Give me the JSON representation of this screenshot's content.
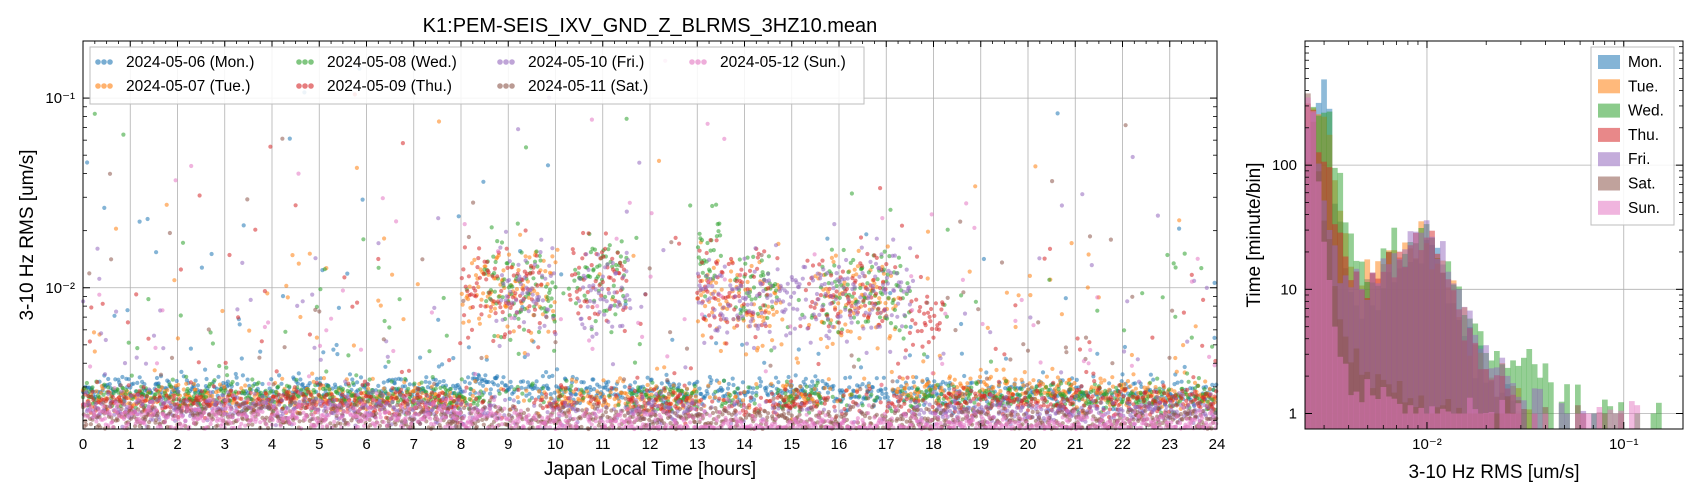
{
  "chart_data": [
    {
      "type": "scatter",
      "title": "K1:PEM-SEIS_IXV_GND_Z_BLRMS_3HZ10.mean",
      "xlabel": "Japan Local Time [hours]",
      "ylabel": "3-10 Hz RMS [um/s]",
      "xlim": [
        0,
        24
      ],
      "ylim": [
        0.0018,
        0.2
      ],
      "yscale": "log",
      "grid": true,
      "legend_position": "upper-left",
      "x_ticks": [
        0,
        1,
        2,
        3,
        4,
        5,
        6,
        7,
        8,
        9,
        10,
        11,
        12,
        13,
        14,
        15,
        16,
        17,
        18,
        19,
        20,
        21,
        22,
        23,
        24
      ],
      "y_ticks": [
        {
          "value": 0.01,
          "label": "10⁻²"
        },
        {
          "value": 0.1,
          "label": "10⁻¹"
        }
      ],
      "series": [
        {
          "name": "2024-05-06 (Mon.)",
          "color": "#1f77b4",
          "baseline": [
            [
              0,
              0.0029
            ],
            [
              7.9,
              0.0029
            ],
            [
              8.5,
              0.0033
            ],
            [
              9,
              0.0029
            ],
            [
              24,
              0.0027
            ]
          ],
          "active_windows": []
        },
        {
          "name": "2024-05-07 (Tue.)",
          "color": "#ff7f0e",
          "baseline": [
            [
              0,
              0.0026
            ],
            [
              12,
              0.0026
            ],
            [
              15,
              0.0027
            ],
            [
              18,
              0.0029
            ],
            [
              19.5,
              0.003
            ],
            [
              24,
              0.0026
            ]
          ],
          "active_windows": [
            [
              8,
              10,
              0.0095
            ],
            [
              13,
              14.8,
              0.0085
            ],
            [
              15.5,
              17.2,
              0.0085
            ]
          ]
        },
        {
          "name": "2024-05-08 (Wed.)",
          "color": "#2ca02c",
          "baseline": [
            [
              0,
              0.0027
            ],
            [
              24,
              0.0026
            ]
          ],
          "active_windows": [
            [
              8.5,
              10,
              0.01
            ],
            [
              10.4,
              11.5,
              0.011
            ],
            [
              13,
              13.5,
              0.016
            ],
            [
              13.8,
              14.7,
              0.01
            ],
            [
              15.6,
              17.5,
              0.0095
            ]
          ]
        },
        {
          "name": "2024-05-09 (Thu.)",
          "color": "#d62728",
          "baseline": [
            [
              0,
              0.0025
            ],
            [
              24,
              0.0025
            ]
          ],
          "active_windows": [
            [
              8,
              9.7,
              0.01
            ],
            [
              10.3,
              11.5,
              0.0105
            ],
            [
              13,
              14.5,
              0.0095
            ],
            [
              15.3,
              17,
              0.0095
            ],
            [
              17.5,
              18.2,
              0.007
            ]
          ]
        },
        {
          "name": "2024-05-10 (Fri.)",
          "color": "#9467bd",
          "baseline": [
            [
              0,
              0.0023
            ],
            [
              24,
              0.0022
            ]
          ],
          "active_windows": [
            [
              8.8,
              10,
              0.0095
            ],
            [
              10.5,
              11.6,
              0.009
            ],
            [
              13,
              15,
              0.0085
            ],
            [
              15,
              17.5,
              0.009
            ]
          ]
        },
        {
          "name": "2024-05-11 (Sat.)",
          "color": "#8c564b",
          "baseline": [
            [
              0,
              0.0021
            ],
            [
              24,
              0.002
            ]
          ],
          "active_windows": []
        },
        {
          "name": "2024-05-12 (Sun.)",
          "color": "#e377c2",
          "baseline": [
            [
              0,
              0.0021
            ],
            [
              8,
              0.0021
            ],
            [
              10,
              0.0019
            ],
            [
              12,
              0.0019
            ],
            [
              24,
              0.0019
            ]
          ],
          "active_windows": []
        }
      ]
    },
    {
      "type": "histogram",
      "xlabel": "3-10 Hz RMS [um/s]",
      "ylabel": "Time [minute/bin]",
      "xscale": "log",
      "yscale": "log",
      "xlim": [
        0.0024,
        0.2
      ],
      "ylim": [
        0.75,
        1000
      ],
      "grid": true,
      "legend_position": "upper-right",
      "x_ticks": [
        {
          "value": 0.01,
          "label": "10⁻²"
        },
        {
          "value": 0.1,
          "label": "10⁻¹"
        }
      ],
      "y_ticks": [
        {
          "value": 1,
          "label": "1"
        },
        {
          "value": 10,
          "label": "10"
        },
        {
          "value": 100,
          "label": "100"
        }
      ],
      "series": [
        {
          "name": "Mon.",
          "color": "#1f77b4",
          "bins": [
            [
              0.0026,
              90
            ],
            [
              0.0028,
              300
            ],
            [
              0.003,
              520
            ],
            [
              0.0032,
              250
            ],
            [
              0.0034,
              60
            ],
            [
              0.0037,
              25
            ],
            [
              0.004,
              10
            ],
            [
              0.0045,
              6
            ],
            [
              0.005,
              8
            ],
            [
              0.006,
              10
            ],
            [
              0.007,
              14
            ],
            [
              0.008,
              18
            ],
            [
              0.009,
              22
            ],
            [
              0.01,
              24
            ],
            [
              0.011,
              20
            ],
            [
              0.012,
              14
            ],
            [
              0.013,
              8
            ],
            [
              0.015,
              4
            ],
            [
              0.017,
              3
            ],
            [
              0.02,
              2
            ],
            [
              0.025,
              1.5
            ],
            [
              0.03,
              1
            ]
          ]
        },
        {
          "name": "Tue.",
          "color": "#ff7f0e",
          "bins": [
            [
              0.0025,
              120
            ],
            [
              0.0027,
              280
            ],
            [
              0.003,
              260
            ],
            [
              0.0033,
              130
            ],
            [
              0.0036,
              45
            ],
            [
              0.004,
              18
            ],
            [
              0.0045,
              12
            ],
            [
              0.005,
              14
            ],
            [
              0.006,
              16
            ],
            [
              0.007,
              18
            ],
            [
              0.008,
              22
            ],
            [
              0.009,
              28
            ],
            [
              0.01,
              25
            ],
            [
              0.011,
              18
            ],
            [
              0.013,
              9
            ],
            [
              0.015,
              5
            ],
            [
              0.018,
              3
            ],
            [
              0.022,
              2
            ],
            [
              0.028,
              1.5
            ],
            [
              0.035,
              1
            ]
          ]
        },
        {
          "name": "Wed.",
          "color": "#2ca02c",
          "bins": [
            [
              0.0025,
              100
            ],
            [
              0.0027,
              240
            ],
            [
              0.003,
              260
            ],
            [
              0.0033,
              150
            ],
            [
              0.0036,
              60
            ],
            [
              0.004,
              25
            ],
            [
              0.0045,
              15
            ],
            [
              0.005,
              13
            ],
            [
              0.006,
              14
            ],
            [
              0.007,
              18
            ],
            [
              0.008,
              22
            ],
            [
              0.009,
              26
            ],
            [
              0.01,
              28
            ],
            [
              0.011,
              22
            ],
            [
              0.013,
              14
            ],
            [
              0.015,
              8
            ],
            [
              0.018,
              5
            ],
            [
              0.021,
              3
            ],
            [
              0.025,
              2
            ],
            [
              0.03,
              3
            ],
            [
              0.04,
              2
            ],
            [
              0.05,
              1.5
            ],
            [
              0.07,
              1
            ],
            [
              0.1,
              1
            ],
            [
              0.16,
              1
            ]
          ]
        },
        {
          "name": "Thu.",
          "color": "#d62728",
          "bins": [
            [
              0.0024,
              250
            ],
            [
              0.0026,
              230
            ],
            [
              0.0028,
              150
            ],
            [
              0.003,
              100
            ],
            [
              0.0033,
              55
            ],
            [
              0.0036,
              25
            ],
            [
              0.004,
              12
            ],
            [
              0.0045,
              9
            ],
            [
              0.005,
              10
            ],
            [
              0.006,
              14
            ],
            [
              0.007,
              18
            ],
            [
              0.008,
              24
            ],
            [
              0.009,
              27
            ],
            [
              0.01,
              30
            ],
            [
              0.011,
              22
            ],
            [
              0.013,
              12
            ],
            [
              0.015,
              6
            ],
            [
              0.018,
              3
            ],
            [
              0.022,
              2
            ],
            [
              0.03,
              1
            ]
          ]
        },
        {
          "name": "Fri.",
          "color": "#9467bd",
          "bins": [
            [
              0.0024,
              300
            ],
            [
              0.0026,
              260
            ],
            [
              0.0028,
              120
            ],
            [
              0.003,
              60
            ],
            [
              0.0033,
              30
            ],
            [
              0.0036,
              14
            ],
            [
              0.004,
              9
            ],
            [
              0.0045,
              10
            ],
            [
              0.005,
              12
            ],
            [
              0.006,
              15
            ],
            [
              0.007,
              20
            ],
            [
              0.008,
              26
            ],
            [
              0.009,
              32
            ],
            [
              0.01,
              30
            ],
            [
              0.011,
              24
            ],
            [
              0.013,
              14
            ],
            [
              0.015,
              7
            ],
            [
              0.018,
              4
            ],
            [
              0.022,
              2.5
            ],
            [
              0.028,
              1.5
            ],
            [
              0.04,
              1
            ],
            [
              0.06,
              1
            ],
            [
              0.09,
              1
            ]
          ]
        },
        {
          "name": "Sat.",
          "color": "#8c564b",
          "bins": [
            [
              0.0024,
              480
            ],
            [
              0.0026,
              260
            ],
            [
              0.0028,
              90
            ],
            [
              0.003,
              35
            ],
            [
              0.0033,
              12
            ],
            [
              0.0036,
              6
            ],
            [
              0.004,
              3
            ],
            [
              0.005,
              2
            ],
            [
              0.007,
              1.5
            ],
            [
              0.01,
              1
            ],
            [
              0.02,
              1
            ],
            [
              0.05,
              1
            ],
            [
              0.1,
              1
            ]
          ]
        },
        {
          "name": "Sun.",
          "color": "#e377c2",
          "bins": [
            [
              0.0024,
              560
            ],
            [
              0.0026,
              280
            ],
            [
              0.0028,
              80
            ],
            [
              0.003,
              25
            ],
            [
              0.0033,
              8
            ],
            [
              0.0036,
              4
            ],
            [
              0.004,
              2
            ],
            [
              0.005,
              1.5
            ],
            [
              0.008,
              1
            ],
            [
              0.05,
              1
            ],
            [
              0.08,
              1
            ],
            [
              0.12,
              1
            ]
          ]
        }
      ]
    }
  ]
}
